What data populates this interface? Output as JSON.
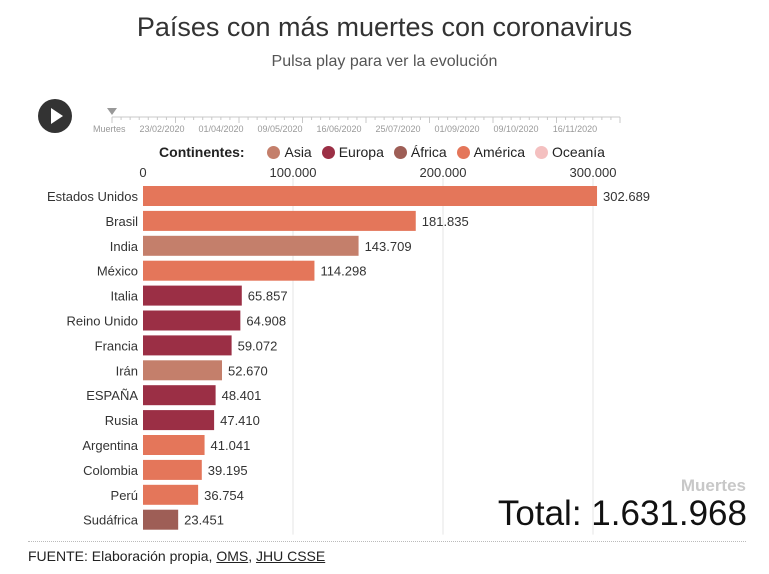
{
  "title": "Países con más muertes con coronavirus",
  "subtitle": "Pulsa play para ver la evolución",
  "player": {
    "icon": "play-icon",
    "timeline_label": "Muertes",
    "dates": [
      "23/02/2020",
      "01/04/2020",
      "09/05/2020",
      "16/06/2020",
      "25/07/2020",
      "01/09/2020",
      "09/10/2020",
      "16/11/2020"
    ],
    "progress": 0
  },
  "legend": {
    "title": "Continentes:",
    "items": [
      {
        "label": "Asia",
        "color": "#c47f6b"
      },
      {
        "label": "Europa",
        "color": "#9b2f45"
      },
      {
        "label": "África",
        "color": "#9e5e56"
      },
      {
        "label": "América",
        "color": "#e4765a"
      },
      {
        "label": "Oceanía",
        "color": "#f4c0c0"
      }
    ]
  },
  "chart_data": {
    "type": "bar",
    "orientation": "horizontal",
    "categories": [
      "Estados Unidos",
      "Brasil",
      "India",
      "México",
      "Italia",
      "Reino Unido",
      "Francia",
      "Irán",
      "ESPAÑA",
      "Rusia",
      "Argentina",
      "Colombia",
      "Perú",
      "Sudáfrica"
    ],
    "values": [
      302689,
      181835,
      143709,
      114298,
      65857,
      64908,
      59072,
      52670,
      48401,
      47410,
      41041,
      39195,
      36754,
      23451
    ],
    "value_labels": [
      "302.689",
      "181.835",
      "143.709",
      "114.298",
      "65.857",
      "64.908",
      "59.072",
      "52.670",
      "48.401",
      "47.410",
      "41.041",
      "39.195",
      "36.754",
      "23.451"
    ],
    "continents": [
      "América",
      "América",
      "Asia",
      "América",
      "Europa",
      "Europa",
      "Europa",
      "Asia",
      "Europa",
      "Europa",
      "América",
      "América",
      "América",
      "África"
    ],
    "xlim": [
      0,
      310000
    ],
    "xticks": [
      0,
      100000,
      200000,
      300000
    ],
    "xtick_labels": [
      "0",
      "100.000",
      "200.000",
      "300.000"
    ],
    "axis_position": "top",
    "grid": true
  },
  "metric_label": "Muertes",
  "total": "Total: 1.631.968",
  "source": {
    "prefix": "FUENTE: Elaboración propia, ",
    "links": [
      "OMS",
      "JHU CSSE"
    ],
    "separator": ", "
  }
}
